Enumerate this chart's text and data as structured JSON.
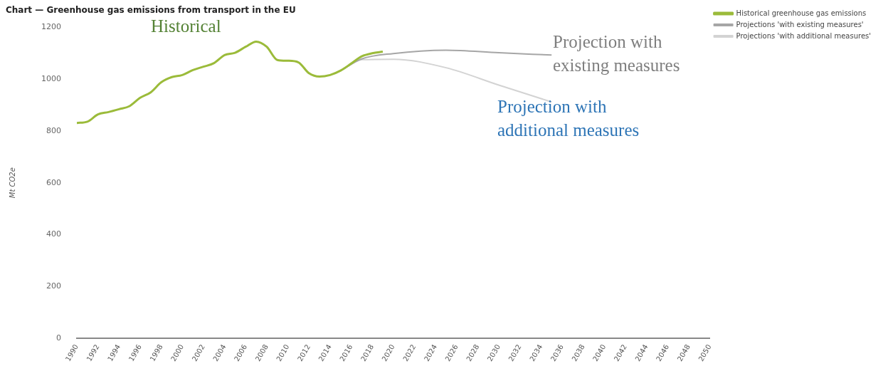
{
  "chart_data": {
    "type": "line",
    "title": "Chart — Greenhouse gas emissions from transport in the EU",
    "ylabel": "Mt CO2e",
    "series": [
      {
        "name": "Historical greenhouse gas emissions",
        "color": "#9bbb3a",
        "x": [
          1990,
          1991,
          1992,
          1993,
          1994,
          1995,
          1996,
          1997,
          1998,
          1999,
          2000,
          2001,
          2002,
          2003,
          2004,
          2005,
          2006,
          2007,
          2008,
          2009,
          2010,
          2011,
          2012,
          2013,
          2014,
          2015,
          2016,
          2017,
          2018,
          2019
        ],
        "values": [
          831,
          836,
          864,
          873,
          884,
          896,
          928,
          949,
          988,
          1008,
          1016,
          1035,
          1048,
          1062,
          1093,
          1102,
          1125,
          1145,
          1125,
          1074,
          1071,
          1065,
          1023,
          1010,
          1016,
          1033,
          1060,
          1088,
          1100,
          1106
        ]
      },
      {
        "name": "Projections 'with existing measures'",
        "color": "#a6a6a6",
        "x": [
          2015,
          2017,
          2020,
          2025,
          2030,
          2035
        ],
        "values": [
          1033,
          1078,
          1099,
          1112,
          1102,
          1093
        ]
      },
      {
        "name": "Projections 'with additional measures'",
        "color": "#d3d3d3",
        "x": [
          2015,
          2017,
          2020,
          2025,
          2030,
          2035
        ],
        "values": [
          1033,
          1075,
          1077,
          1044,
          977,
          912
        ]
      }
    ],
    "xlim": [
      1990,
      2050
    ],
    "xticks": [
      1990,
      1992,
      1994,
      1996,
      1998,
      2000,
      2002,
      2004,
      2006,
      2008,
      2010,
      2012,
      2014,
      2016,
      2018,
      2020,
      2022,
      2024,
      2026,
      2028,
      2030,
      2032,
      2034,
      2036,
      2038,
      2040,
      2042,
      2044,
      2046,
      2048,
      2050
    ],
    "ylim": [
      0,
      1200
    ],
    "yticks": [
      0,
      200,
      400,
      600,
      800,
      1000,
      1200
    ],
    "grid": false,
    "legend": "top right",
    "marker": "none",
    "line_style": "solid",
    "annotations": [
      "Historical",
      "Projection with existing measures",
      "Projection with additional measures"
    ]
  }
}
